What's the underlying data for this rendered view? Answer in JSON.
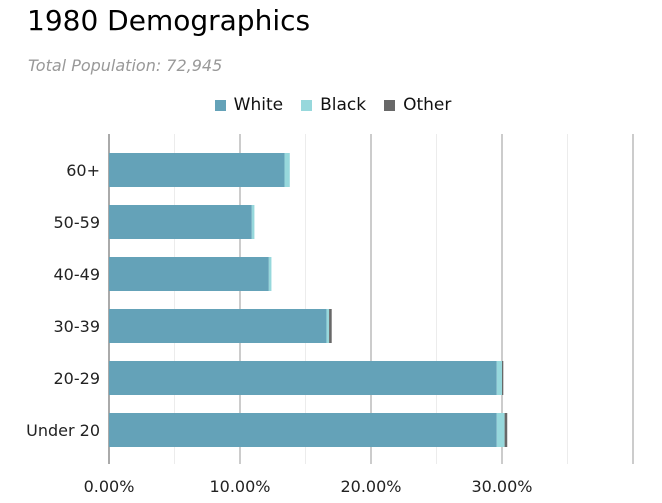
{
  "title": "1980 Demographics",
  "subtitle": "Total Population: 72,945",
  "colors": {
    "White": "#64a2b8",
    "Black": "#97d8dc",
    "Other": "#686868"
  },
  "chart_data": {
    "type": "bar",
    "orientation": "horizontal",
    "stacked": true,
    "title": "1980 Demographics",
    "subtitle": "Total Population: 72,945",
    "categories": [
      "60+",
      "50-59",
      "40-49",
      "30-39",
      "20-29",
      "Under 20"
    ],
    "series": [
      {
        "name": "White",
        "values": [
          13.4,
          10.9,
          12.2,
          16.6,
          29.6,
          29.6
        ]
      },
      {
        "name": "Black",
        "values": [
          0.4,
          0.2,
          0.2,
          0.2,
          0.4,
          0.6
        ]
      },
      {
        "name": "Other",
        "values": [
          0.0,
          0.0,
          0.0,
          0.2,
          0.1,
          0.2
        ]
      }
    ],
    "xlim": [
      0,
      40
    ],
    "xticks": [
      "0.00%",
      "10.00%",
      "20.00%",
      "30.00%"
    ],
    "xtick_values": [
      0,
      10,
      20,
      30
    ],
    "legend_position": "top-center",
    "grid": true
  }
}
